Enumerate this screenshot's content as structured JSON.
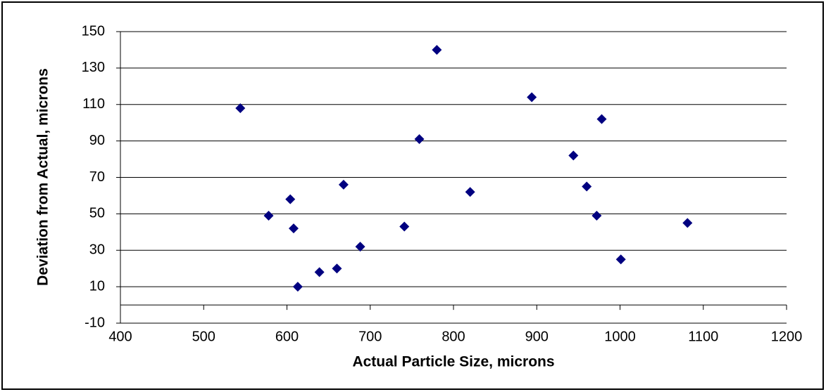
{
  "chart_data": {
    "type": "scatter",
    "xlabel": "Actual Particle Size, microns",
    "ylabel": "Deviation from Actual, microns",
    "color": "#000080",
    "x": [
      544,
      578,
      604,
      608,
      613,
      639,
      660,
      668,
      688,
      741,
      759,
      780,
      820,
      894,
      944,
      960,
      972,
      978,
      1001,
      1081
    ],
    "values": [
      108,
      49,
      58,
      42,
      10,
      18,
      20,
      66,
      32,
      43,
      91,
      140,
      62,
      114,
      82,
      65,
      49,
      102,
      25,
      45
    ],
    "xlim": [
      400,
      1200
    ],
    "xticks": [
      400,
      500,
      600,
      700,
      800,
      900,
      1000,
      1100,
      1200
    ],
    "ylim": [
      -10,
      150
    ],
    "yticks": [
      -10,
      10,
      30,
      50,
      70,
      90,
      110,
      130,
      150
    ],
    "grid": true
  }
}
